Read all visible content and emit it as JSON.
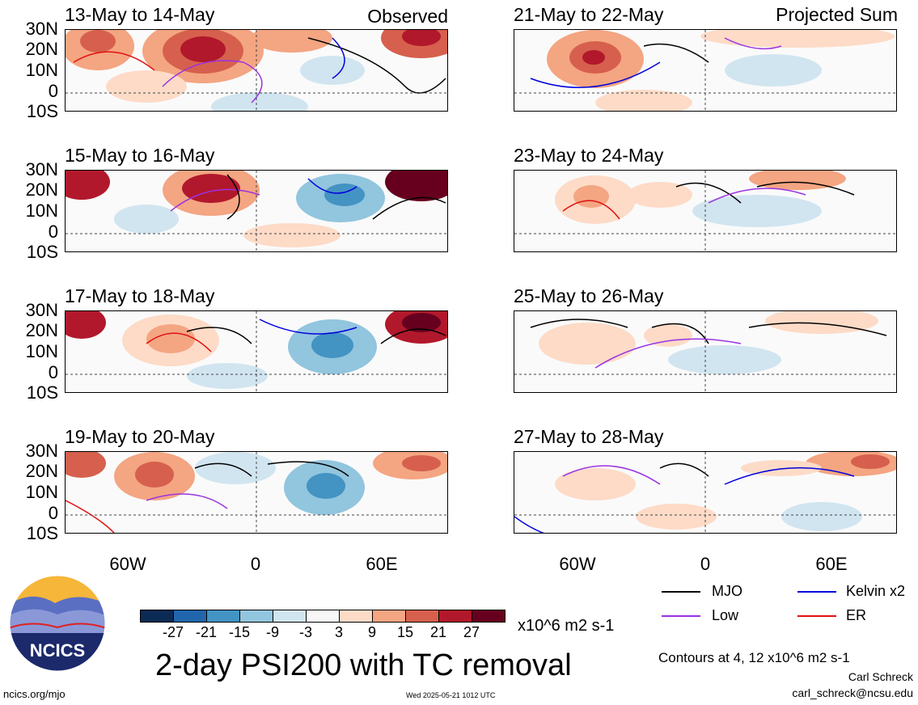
{
  "corner_labels": {
    "left": "Observed",
    "right": "Projected Sum"
  },
  "panels": [
    {
      "title": "13-May to 14-May",
      "col": 0,
      "row": 0
    },
    {
      "title": "15-May to 16-May",
      "col": 0,
      "row": 1
    },
    {
      "title": "17-May to 18-May",
      "col": 0,
      "row": 2
    },
    {
      "title": "19-May to 20-May",
      "col": 0,
      "row": 3
    },
    {
      "title": "21-May to 22-May",
      "col": 1,
      "row": 0
    },
    {
      "title": "23-May to 24-May",
      "col": 1,
      "row": 1
    },
    {
      "title": "25-May to 26-May",
      "col": 1,
      "row": 2
    },
    {
      "title": "27-May to 28-May",
      "col": 1,
      "row": 3
    }
  ],
  "lat_labels": [
    "30N",
    "20N",
    "10N",
    "0",
    "10S"
  ],
  "lon_labels": [
    "60W",
    "0",
    "60E"
  ],
  "colorbar": {
    "colors": [
      "#0b2b55",
      "#2166ac",
      "#4393c3",
      "#92c5de",
      "#d1e5f0",
      "#f7f7f7",
      "#fddbc7",
      "#f4a582",
      "#d6604d",
      "#b2182b",
      "#67001f"
    ],
    "tick_labels": [
      "-27",
      "-21",
      "-15",
      "-9",
      "-3",
      "3",
      "9",
      "15",
      "21",
      "27"
    ],
    "units": "x10^6 m2 s-1"
  },
  "line_legend": [
    {
      "label": "MJO",
      "color": "#000000"
    },
    {
      "label": "Kelvin x2",
      "color": "#0000dd"
    },
    {
      "label": "Low",
      "color": "#9a32e0"
    },
    {
      "label": "ER",
      "color": "#e01010"
    }
  ],
  "logo_text": "NCICS",
  "title": "2-day PSI200 with TC removal",
  "contour_note": "Contours at 4, 12 x10^6 m2 s-1",
  "author": "Carl Schreck",
  "email": "carl_schreck@ncsu.edu",
  "website": "ncics.org/mjo",
  "timestamp": "Wed 2025-05-21 1012 UTC"
}
